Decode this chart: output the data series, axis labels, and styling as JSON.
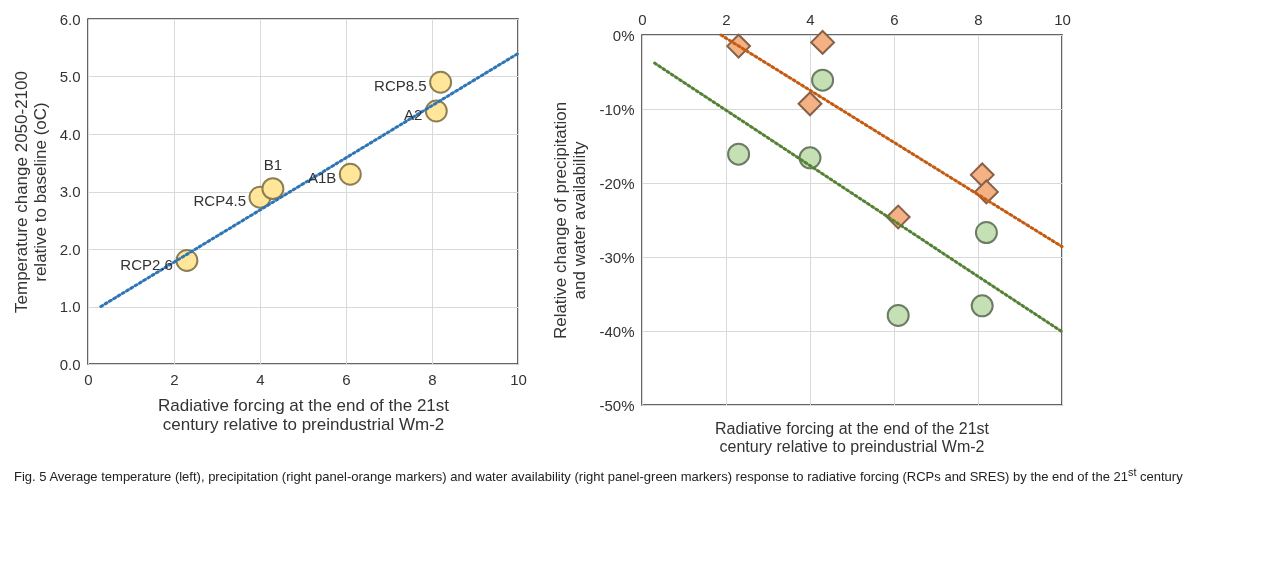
{
  "chart_data": [
    {
      "type": "scatter",
      "xlabel": "Radiative forcing at the end of the 21st century relative to preindustrial Wm-2",
      "ylabel": "Temperature change 2050-2100 relative to baseline  (oC)",
      "x": [
        2.3,
        4.0,
        4.3,
        6.1,
        8.1,
        8.2
      ],
      "series": [
        {
          "color": "#ffe699",
          "values": [
            1.8,
            2.9,
            3.05,
            3.3,
            4.4,
            4.9
          ],
          "marker": "circle"
        },
        {
          "type": "line",
          "color": "#2e75b6",
          "x": [
            0.3,
            10
          ],
          "values": [
            1.0,
            5.4
          ],
          "line_style": "dotted",
          "marker": "none"
        }
      ],
      "xlim": [
        0,
        10
      ],
      "xticks": [
        0,
        2,
        4,
        6,
        8,
        10
      ],
      "ylim": [
        0,
        6
      ],
      "yticks": [
        {
          "value": 0,
          "label": "0.0"
        },
        {
          "value": 1,
          "label": "1.0"
        },
        {
          "value": 2,
          "label": "2.0"
        },
        {
          "value": 3,
          "label": "3.0"
        },
        {
          "value": 4,
          "label": "4.0"
        },
        {
          "value": 5,
          "label": "5.0"
        },
        {
          "value": 6,
          "label": "6.0"
        }
      ],
      "grid": true,
      "annotations": [
        {
          "text": "RCP2.6",
          "x": 2.3,
          "y": 1.8
        },
        {
          "text": "RCP4.5",
          "x": 4.0,
          "y": 2.9
        },
        {
          "text": "B1",
          "x": 4.3,
          "y": 3.05
        },
        {
          "text": "A1B",
          "x": 6.1,
          "y": 3.3
        },
        {
          "text": "A2",
          "x": 8.1,
          "y": 4.4
        },
        {
          "text": "RCP8.5",
          "x": 8.2,
          "y": 4.9
        },
        "Fig. 5 Average temperature (left), precipitation (right panel-orange markers) and water availability (right panel-green markers) response to radiative forcing (RCPs and SRES) by the end of the 21$^{st}$ century"
      ]
    },
    {
      "type": "scatter",
      "xlabel": "Radiative forcing at the end of the 21st century relative to preindustrial Wm-2",
      "ylabel": "Relative change of precipitation and water availability",
      "x": [
        2.3,
        4.0,
        4.3,
        6.1,
        8.1,
        8.2
      ],
      "series": [
        {
          "color": "#f4b183",
          "values": [
            -1.5,
            -9.3,
            -1.0,
            -24.6,
            -18.9,
            -21.2
          ],
          "marker": "diamond"
        },
        {
          "type": "line",
          "color": "#c55a11",
          "x": [
            1.88,
            10
          ],
          "values": [
            0,
            -28.6
          ],
          "line_style": "dotted",
          "marker": "none"
        },
        {
          "color": "#c5e0b4",
          "values": [
            -16.1,
            -16.6,
            -6.1,
            -37.9,
            -36.6,
            -26.7
          ],
          "marker": "circle"
        },
        {
          "type": "line",
          "color": "#548235",
          "x": [
            0.3,
            10
          ],
          "values": [
            -3.8,
            -40.1
          ],
          "line_style": "dotted",
          "marker": "none"
        }
      ],
      "xlim": [
        0,
        10
      ],
      "xticks": [
        0,
        2,
        4,
        6,
        8,
        10
      ],
      "ylim": [
        -50,
        0
      ],
      "yticks": [
        {
          "value": -50,
          "label": "-50%"
        },
        {
          "value": -40,
          "label": "-40%"
        },
        {
          "value": -30,
          "label": "-30%"
        },
        {
          "value": -20,
          "label": "-20%"
        },
        {
          "value": -10,
          "label": "-10%"
        },
        {
          "value": 0,
          "label": "0%"
        }
      ],
      "grid": true
    }
  ]
}
